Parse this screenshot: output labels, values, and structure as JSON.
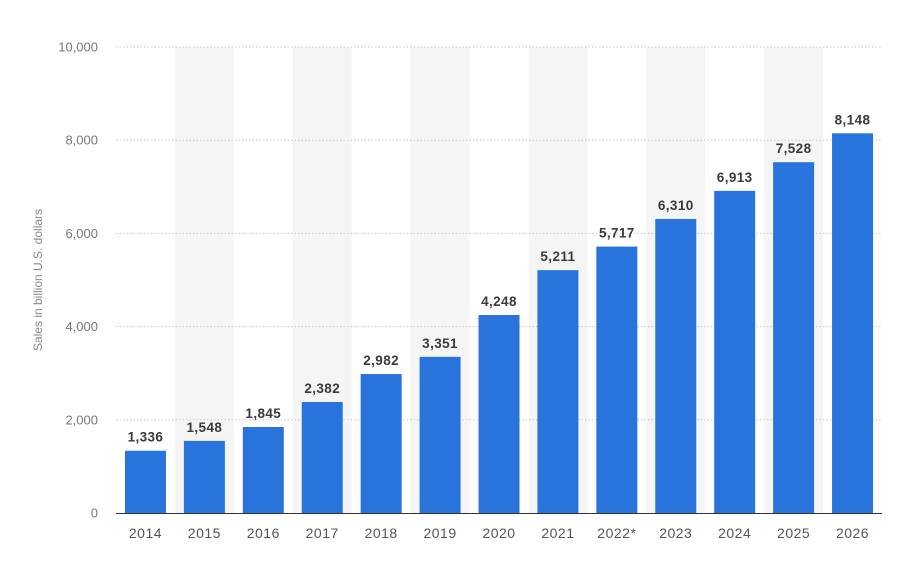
{
  "colors": {
    "bar": "#2873dc",
    "band": "#f5f5f5",
    "grid": "#c8c8c8",
    "axis": "#333333"
  },
  "chart_data": {
    "type": "bar",
    "title": "",
    "xlabel": "",
    "ylabel": "Sales in billion U.S. dollars",
    "ylim": [
      0,
      10000
    ],
    "yticks": [
      0,
      2000,
      4000,
      6000,
      8000,
      10000
    ],
    "ytick_labels": [
      "0",
      "2,000",
      "4,000",
      "6,000",
      "8,000",
      "10,000"
    ],
    "categories": [
      "2014",
      "2015",
      "2016",
      "2017",
      "2018",
      "2019",
      "2020",
      "2021",
      "2022*",
      "2023",
      "2024",
      "2025",
      "2026"
    ],
    "values": [
      1336,
      1548,
      1845,
      2382,
      2982,
      3351,
      4248,
      5211,
      5717,
      6310,
      6913,
      7528,
      8148
    ],
    "value_labels": [
      "1,336",
      "1,548",
      "1,845",
      "2,382",
      "2,982",
      "3,351",
      "4,248",
      "5,211",
      "5,717",
      "6,310",
      "6,913",
      "7,528",
      "8,148"
    ],
    "grid": true,
    "alternating_bands": true,
    "legend": "none"
  }
}
